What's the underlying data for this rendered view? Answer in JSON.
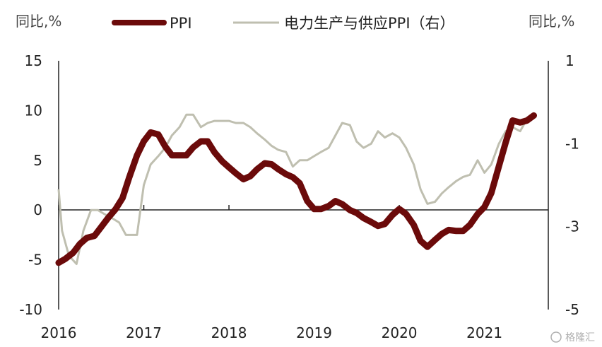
{
  "chart_data": {
    "type": "line",
    "left_unit": "同比,%",
    "right_unit": "同比,%",
    "watermark": "格隆汇",
    "y_left": {
      "range": [
        -10,
        15
      ],
      "ticks": [
        "15",
        "10",
        "5",
        "0",
        "-5",
        "-10"
      ]
    },
    "y_right": {
      "range": [
        -5,
        1
      ],
      "ticks": [
        "1",
        "-1",
        "-3",
        "-5"
      ]
    },
    "x": {
      "range": [
        2016,
        2021.75
      ],
      "ticks": [
        "2016",
        "2017",
        "2018",
        "2019",
        "2020",
        "2021"
      ]
    },
    "legend_position": "top",
    "series": [
      {
        "name": "PPI",
        "axis": "left",
        "color": "#6b0a0a",
        "points": [
          [
            2016.0,
            -5.3
          ],
          [
            2016.08,
            -4.9
          ],
          [
            2016.17,
            -4.3
          ],
          [
            2016.25,
            -3.4
          ],
          [
            2016.33,
            -2.8
          ],
          [
            2016.42,
            -2.6
          ],
          [
            2016.5,
            -1.7
          ],
          [
            2016.58,
            -0.8
          ],
          [
            2016.67,
            0.1
          ],
          [
            2016.75,
            1.2
          ],
          [
            2016.83,
            3.3
          ],
          [
            2016.92,
            5.5
          ],
          [
            2017.0,
            6.9
          ],
          [
            2017.08,
            7.8
          ],
          [
            2017.17,
            7.6
          ],
          [
            2017.25,
            6.4
          ],
          [
            2017.33,
            5.5
          ],
          [
            2017.42,
            5.5
          ],
          [
            2017.5,
            5.5
          ],
          [
            2017.58,
            6.3
          ],
          [
            2017.67,
            6.9
          ],
          [
            2017.75,
            6.9
          ],
          [
            2017.83,
            5.8
          ],
          [
            2017.92,
            4.9
          ],
          [
            2018.0,
            4.3
          ],
          [
            2018.08,
            3.7
          ],
          [
            2018.17,
            3.1
          ],
          [
            2018.25,
            3.4
          ],
          [
            2018.33,
            4.1
          ],
          [
            2018.42,
            4.7
          ],
          [
            2018.5,
            4.6
          ],
          [
            2018.58,
            4.1
          ],
          [
            2018.67,
            3.6
          ],
          [
            2018.75,
            3.3
          ],
          [
            2018.83,
            2.7
          ],
          [
            2018.92,
            0.9
          ],
          [
            2019.0,
            0.1
          ],
          [
            2019.08,
            0.1
          ],
          [
            2019.17,
            0.4
          ],
          [
            2019.25,
            0.9
          ],
          [
            2019.33,
            0.6
          ],
          [
            2019.42,
            0.0
          ],
          [
            2019.5,
            -0.3
          ],
          [
            2019.58,
            -0.8
          ],
          [
            2019.67,
            -1.2
          ],
          [
            2019.75,
            -1.6
          ],
          [
            2019.83,
            -1.4
          ],
          [
            2019.92,
            -0.5
          ],
          [
            2020.0,
            0.1
          ],
          [
            2020.08,
            -0.4
          ],
          [
            2020.17,
            -1.5
          ],
          [
            2020.25,
            -3.1
          ],
          [
            2020.33,
            -3.7
          ],
          [
            2020.42,
            -3.0
          ],
          [
            2020.5,
            -2.4
          ],
          [
            2020.58,
            -2.0
          ],
          [
            2020.67,
            -2.1
          ],
          [
            2020.75,
            -2.1
          ],
          [
            2020.83,
            -1.5
          ],
          [
            2020.92,
            -0.4
          ],
          [
            2021.0,
            0.3
          ],
          [
            2021.08,
            1.7
          ],
          [
            2021.17,
            4.4
          ],
          [
            2021.25,
            6.8
          ],
          [
            2021.33,
            9.0
          ],
          [
            2021.42,
            8.8
          ],
          [
            2021.5,
            9.0
          ],
          [
            2021.58,
            9.5
          ]
        ]
      },
      {
        "name": "电力生产与供应PPI（右）",
        "axis": "right",
        "color": "#bfbfb0",
        "points": [
          [
            2016.0,
            -2.1
          ],
          [
            2016.04,
            -3.1
          ],
          [
            2016.12,
            -3.7
          ],
          [
            2016.21,
            -3.9
          ],
          [
            2016.29,
            -3.1
          ],
          [
            2016.38,
            -2.6
          ],
          [
            2016.46,
            -2.6
          ],
          [
            2016.54,
            -2.7
          ],
          [
            2016.63,
            -2.8
          ],
          [
            2016.71,
            -2.9
          ],
          [
            2016.79,
            -3.2
          ],
          [
            2016.92,
            -3.2
          ],
          [
            2017.0,
            -2.0
          ],
          [
            2017.08,
            -1.5
          ],
          [
            2017.17,
            -1.3
          ],
          [
            2017.25,
            -1.1
          ],
          [
            2017.33,
            -0.8
          ],
          [
            2017.42,
            -0.6
          ],
          [
            2017.5,
            -0.3
          ],
          [
            2017.58,
            -0.3
          ],
          [
            2017.67,
            -0.6
          ],
          [
            2017.75,
            -0.5
          ],
          [
            2017.83,
            -0.45
          ],
          [
            2017.92,
            -0.45
          ],
          [
            2018.0,
            -0.45
          ],
          [
            2018.08,
            -0.5
          ],
          [
            2018.17,
            -0.5
          ],
          [
            2018.25,
            -0.6
          ],
          [
            2018.33,
            -0.75
          ],
          [
            2018.42,
            -0.9
          ],
          [
            2018.5,
            -1.05
          ],
          [
            2018.58,
            -1.15
          ],
          [
            2018.67,
            -1.2
          ],
          [
            2018.75,
            -1.55
          ],
          [
            2018.83,
            -1.4
          ],
          [
            2018.92,
            -1.4
          ],
          [
            2019.0,
            -1.3
          ],
          [
            2019.08,
            -1.2
          ],
          [
            2019.17,
            -1.1
          ],
          [
            2019.25,
            -0.8
          ],
          [
            2019.33,
            -0.5
          ],
          [
            2019.42,
            -0.55
          ],
          [
            2019.5,
            -0.95
          ],
          [
            2019.58,
            -1.1
          ],
          [
            2019.67,
            -1.0
          ],
          [
            2019.75,
            -0.7
          ],
          [
            2019.83,
            -0.85
          ],
          [
            2019.92,
            -0.75
          ],
          [
            2020.0,
            -0.85
          ],
          [
            2020.08,
            -1.1
          ],
          [
            2020.17,
            -1.5
          ],
          [
            2020.25,
            -2.1
          ],
          [
            2020.33,
            -2.45
          ],
          [
            2020.42,
            -2.4
          ],
          [
            2020.5,
            -2.2
          ],
          [
            2020.58,
            -2.05
          ],
          [
            2020.67,
            -1.9
          ],
          [
            2020.75,
            -1.8
          ],
          [
            2020.83,
            -1.75
          ],
          [
            2020.92,
            -1.4
          ],
          [
            2021.0,
            -1.7
          ],
          [
            2021.08,
            -1.5
          ],
          [
            2021.17,
            -1.0
          ],
          [
            2021.25,
            -0.7
          ],
          [
            2021.33,
            -0.6
          ],
          [
            2021.42,
            -0.7
          ],
          [
            2021.5,
            -0.4
          ],
          [
            2021.58,
            -0.4
          ]
        ]
      }
    ]
  }
}
